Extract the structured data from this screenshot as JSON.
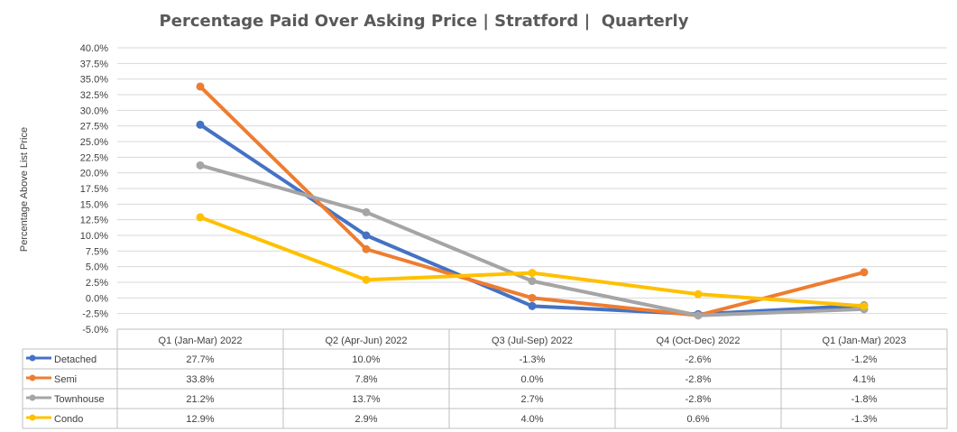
{
  "colors": {
    "Detached": "#4472C4",
    "Semi": "#ED7D31",
    "Townhouse": "#A5A5A5",
    "Condo": "#FFC000",
    "gridline": "#d9d9d9",
    "table_border": "#bfbfbf"
  },
  "chart_data": {
    "type": "line",
    "title": "Percentage Paid Over Asking Price | Stratford |  Quarterly",
    "xlabel": "",
    "ylabel": "Percentage Above List Price",
    "ylim": [
      -5,
      40
    ],
    "y_tick_step": 2.5,
    "y_tick_labels": [
      "-5.0%",
      "-2.5%",
      "0.0%",
      "2.5%",
      "5.0%",
      "7.5%",
      "10.0%",
      "12.5%",
      "15.0%",
      "17.5%",
      "20.0%",
      "22.5%",
      "25.0%",
      "27.5%",
      "30.0%",
      "32.5%",
      "35.0%",
      "37.5%",
      "40.0%"
    ],
    "grid": true,
    "legend": "data-table",
    "categories": [
      "Q1 (Jan-Mar) 2022",
      "Q2 (Apr-Jun) 2022",
      "Q3 (Jul-Sep) 2022",
      "Q4 (Oct-Dec) 2022",
      "Q1 (Jan-Mar) 2023"
    ],
    "series": [
      {
        "name": "Detached",
        "values": [
          27.7,
          10.0,
          -1.3,
          -2.6,
          -1.2
        ],
        "labels": [
          "27.7%",
          "10.0%",
          "-1.3%",
          "-2.6%",
          "-1.2%"
        ]
      },
      {
        "name": "Semi",
        "values": [
          33.8,
          7.8,
          0.0,
          -2.8,
          4.1
        ],
        "labels": [
          "33.8%",
          "7.8%",
          "0.0%",
          "-2.8%",
          "4.1%"
        ]
      },
      {
        "name": "Townhouse",
        "values": [
          21.2,
          13.7,
          2.7,
          -2.8,
          -1.8
        ],
        "labels": [
          "21.2%",
          "13.7%",
          "2.7%",
          "-2.8%",
          "-1.8%"
        ]
      },
      {
        "name": "Condo",
        "values": [
          12.9,
          2.9,
          4.0,
          0.6,
          -1.3
        ],
        "labels": [
          "12.9%",
          "2.9%",
          "4.0%",
          "0.6%",
          "-1.3%"
        ]
      }
    ]
  }
}
